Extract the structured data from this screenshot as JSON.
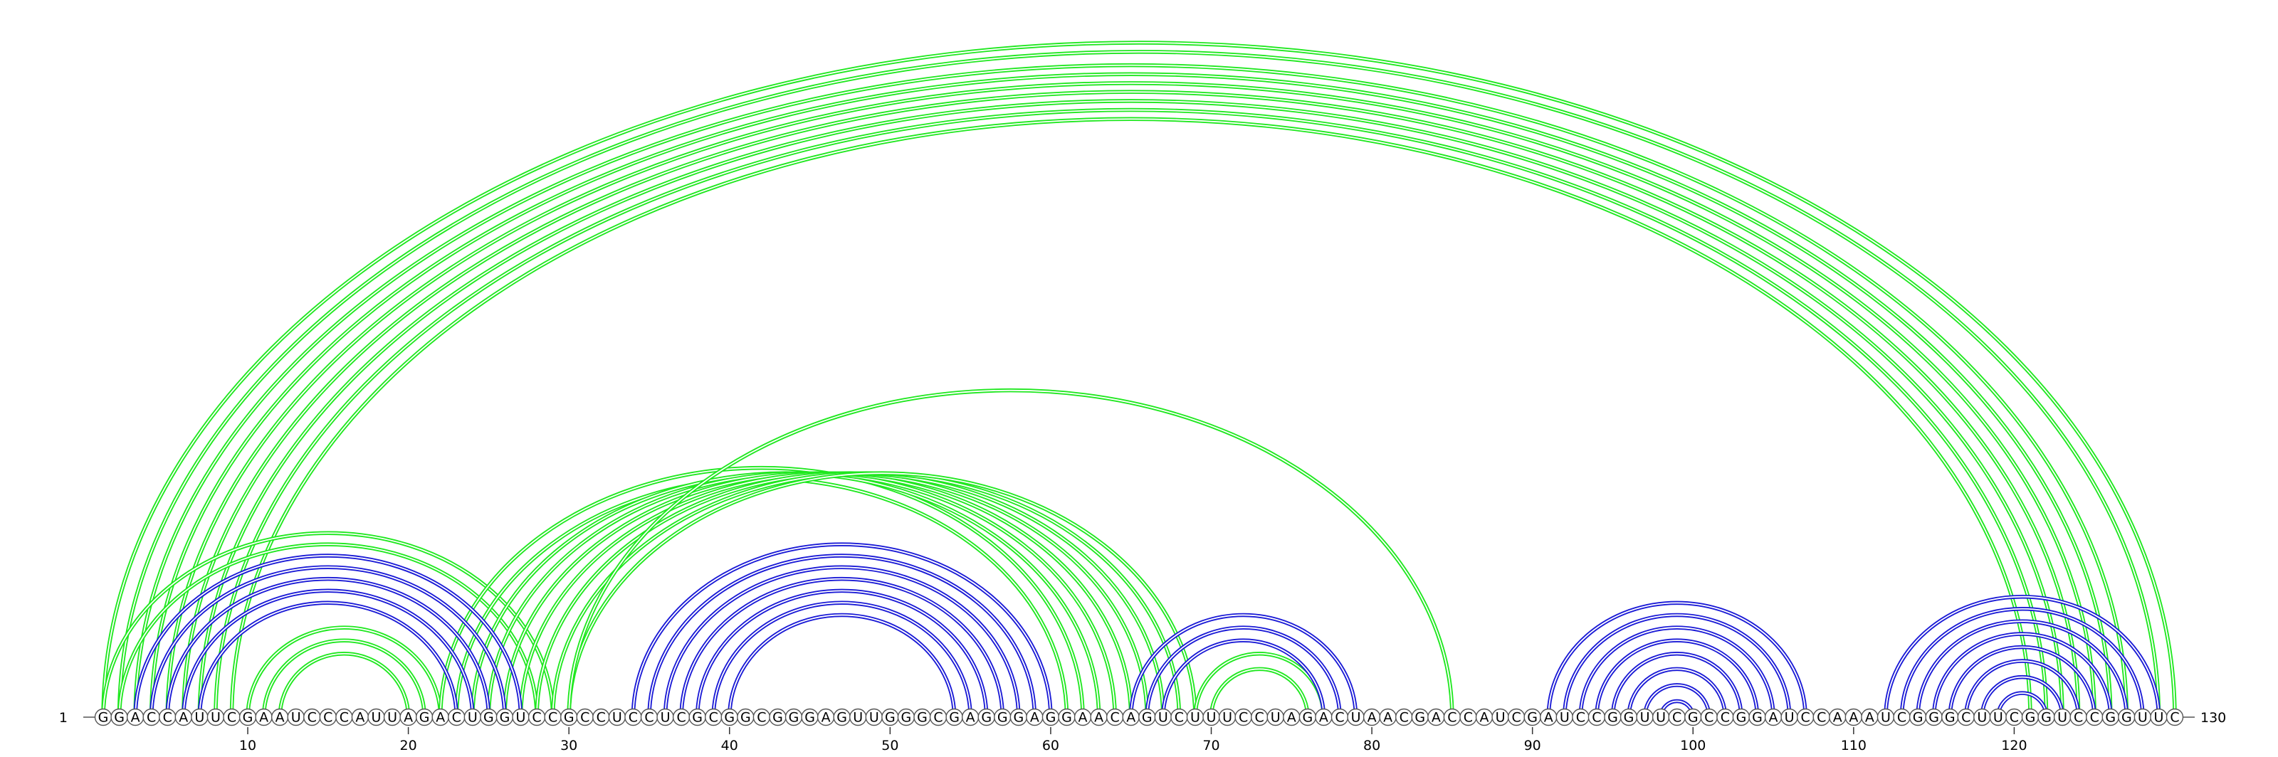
{
  "sequence": "GGACCAUUCGAAUCCCAUUAGACUGGUCCGCCUCCUCGCGGCGGGAGUUGGGCGAGGGAGGAACAGUCUUUCCUAGACUAACGACCAUCGAUCCGGUUCGCCGGAUCCAAAUCGGGCUUCGGUCCGGUUC",
  "start_label": "1",
  "end_label": "130",
  "ticks": [
    10,
    20,
    30,
    40,
    50,
    60,
    70,
    80,
    90,
    100,
    110,
    120
  ],
  "colors": {
    "green": "#1fe81f",
    "blue": "#1a1ad6",
    "nucleotide_fill": "#ffffff",
    "nucleotide_stroke": "#555555"
  },
  "green_arcs": [
    [
      1,
      130
    ],
    [
      2,
      129
    ],
    [
      3,
      127
    ],
    [
      4,
      126
    ],
    [
      5,
      125
    ],
    [
      6,
      124
    ],
    [
      7,
      123
    ],
    [
      8,
      122
    ],
    [
      9,
      121
    ],
    [
      1,
      29
    ],
    [
      2,
      28
    ],
    [
      10,
      22
    ],
    [
      11,
      21
    ],
    [
      12,
      20
    ],
    [
      22,
      62
    ],
    [
      23,
      61
    ],
    [
      24,
      63
    ],
    [
      25,
      64
    ],
    [
      26,
      65
    ],
    [
      27,
      66
    ],
    [
      28,
      67
    ],
    [
      29,
      68
    ],
    [
      30,
      69
    ],
    [
      30,
      85
    ],
    [
      69,
      77
    ],
    [
      70,
      76
    ]
  ],
  "blue_arcs": [
    [
      3,
      27
    ],
    [
      4,
      26
    ],
    [
      5,
      25
    ],
    [
      6,
      24
    ],
    [
      7,
      23
    ],
    [
      34,
      60
    ],
    [
      35,
      59
    ],
    [
      36,
      58
    ],
    [
      37,
      57
    ],
    [
      38,
      56
    ],
    [
      39,
      55
    ],
    [
      40,
      54
    ],
    [
      65,
      79
    ],
    [
      66,
      78
    ],
    [
      67,
      77
    ],
    [
      91,
      107
    ],
    [
      92,
      106
    ],
    [
      93,
      105
    ],
    [
      94,
      104
    ],
    [
      95,
      103
    ],
    [
      96,
      102
    ],
    [
      97,
      101
    ],
    [
      98,
      100
    ],
    [
      112,
      129
    ],
    [
      113,
      128
    ],
    [
      114,
      127
    ],
    [
      115,
      126
    ],
    [
      116,
      125
    ],
    [
      117,
      124
    ],
    [
      118,
      123
    ],
    [
      119,
      122
    ]
  ]
}
